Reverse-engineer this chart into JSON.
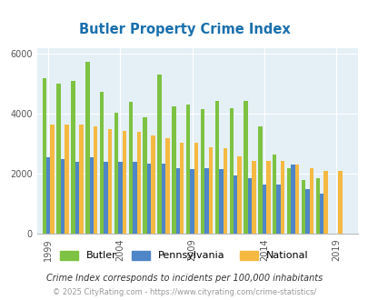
{
  "title": "Butler Property Crime Index",
  "years": [
    1999,
    2000,
    2001,
    2002,
    2003,
    2004,
    2005,
    2006,
    2007,
    2008,
    2009,
    2010,
    2011,
    2012,
    2013,
    2014,
    2015,
    2016,
    2017,
    2018,
    2019,
    2020
  ],
  "butler": [
    5200,
    5000,
    5100,
    5750,
    4750,
    4050,
    4400,
    3900,
    5300,
    4250,
    4300,
    4150,
    4450,
    4200,
    4450,
    3600,
    2650,
    2200,
    1800,
    1850,
    0,
    0
  ],
  "pennsylvania": [
    2550,
    2500,
    2400,
    2550,
    2400,
    2400,
    2400,
    2350,
    2350,
    2200,
    2150,
    2200,
    2150,
    1950,
    1850,
    1650,
    1650,
    2300,
    1500,
    1350,
    0,
    0
  ],
  "national": [
    3650,
    3650,
    3650,
    3600,
    3500,
    3450,
    3400,
    3280,
    3200,
    3050,
    3050,
    2900,
    2870,
    2580,
    2450,
    2450,
    2450,
    2320,
    2200,
    2100,
    2100,
    0
  ],
  "butler_color": "#7dc242",
  "pennsylvania_color": "#4e86c8",
  "national_color": "#f5b942",
  "bg_color": "#e4f0f6",
  "title_color": "#1a6fad",
  "footnote1": "Crime Index corresponds to incidents per 100,000 inhabitants",
  "footnote2": "© 2025 CityRating.com - https://www.cityrating.com/crime-statistics/",
  "xtick_labels": [
    "1999",
    "2004",
    "2009",
    "2014",
    "2019"
  ],
  "xtick_year_positions": [
    1999,
    2004,
    2009,
    2014,
    2019
  ]
}
